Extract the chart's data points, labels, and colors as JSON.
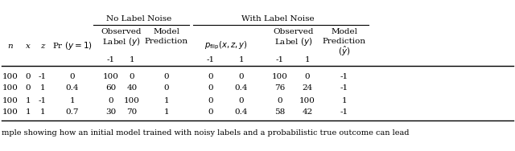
{
  "nln_label": "No Label Noise",
  "wln_label": "With Label Noise",
  "col_headers": {
    "n": "n",
    "x": "x",
    "z": "z",
    "pr": "Pr (y = 1)",
    "obs_nln_line1": "Observed",
    "obs_nln_line2": "Label (y)",
    "model_nln_line1": "Model",
    "model_nln_line2": "Prediction",
    "pflip": "$p_{\\mathrm{flip}}(x, z, y)$",
    "obs_wln_line1": "Observed",
    "obs_wln_line2": "Label (y)",
    "model_wln_line1": "Model",
    "model_wln_line2": "Prediction",
    "model_wln_line3": "$(\\hat{y})$"
  },
  "sub_labels": [
    "-1",
    "1"
  ],
  "data": [
    [
      "100",
      "0",
      "-1",
      "0",
      "100",
      "0",
      "0",
      "0",
      "0",
      "100",
      "0",
      "-1"
    ],
    [
      "100",
      "0",
      "1",
      "0.4",
      "60",
      "40",
      "0",
      "0",
      "0.4",
      "76",
      "24",
      "-1"
    ],
    [
      "100",
      "1",
      "-1",
      "1",
      "0",
      "100",
      "1",
      "0",
      "0",
      "0",
      "100",
      "1"
    ],
    [
      "100",
      "1",
      "1",
      "0.7",
      "30",
      "70",
      "1",
      "0",
      "0.4",
      "58",
      "42",
      "-1"
    ]
  ],
  "footer": "mple showing how an initial model trained with noisy labels and a probabilistic true outcome can lead",
  "bg_color": "#ffffff",
  "fs": 7.5
}
